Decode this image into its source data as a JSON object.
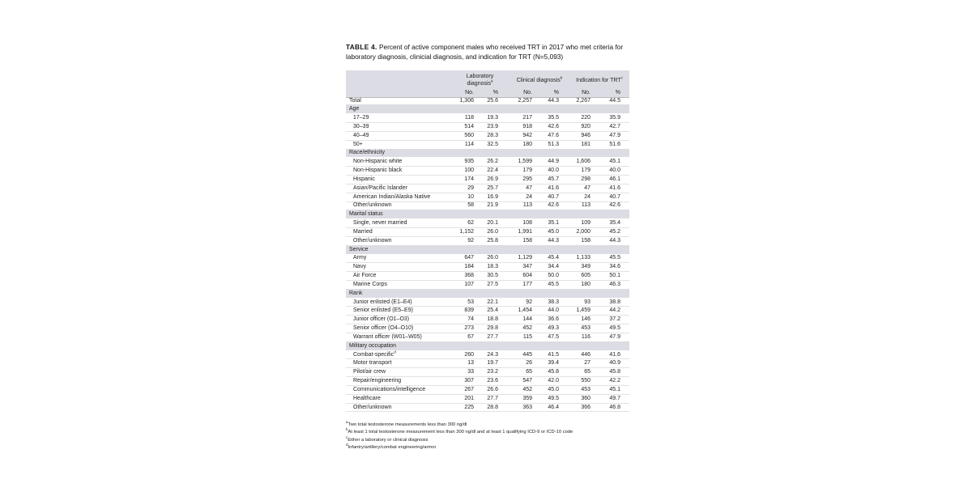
{
  "title_label": "TABLE 4.",
  "title": "Percent of active component males who received TRT in 2017 who met criteria for laboratory diagnosis, clinicial diagnosis, and indication for TRT (N=5,093)",
  "table": {
    "groups": [
      {
        "label": "Laboratory diagnosis",
        "note": "a"
      },
      {
        "label": "Clinical diagnosis",
        "note": "b"
      },
      {
        "label": "Indication for TRT",
        "note": "c"
      }
    ],
    "subheaders": [
      "No.",
      "%",
      "No.",
      "%",
      "No.",
      "%"
    ],
    "total": [
      "Total",
      "1,306",
      "25.6",
      "2,257",
      "44.3",
      "2,267",
      "44.5"
    ],
    "sections": [
      {
        "label": "Age",
        "rows": [
          [
            "17–29",
            "118",
            "19.3",
            "217",
            "35.5",
            "220",
            "35.9"
          ],
          [
            "30–39",
            "514",
            "23.9",
            "918",
            "42.6",
            "920",
            "42.7"
          ],
          [
            "40–49",
            "560",
            "28.3",
            "942",
            "47.6",
            "946",
            "47.9"
          ],
          [
            "50+",
            "114",
            "32.5",
            "180",
            "51.3",
            "181",
            "51.6"
          ]
        ]
      },
      {
        "label": "Race/ethnicity",
        "rows": [
          [
            "Non-Hispanic white",
            "935",
            "26.2",
            "1,599",
            "44.9",
            "1,606",
            "45.1"
          ],
          [
            "Non-Hispanic black",
            "100",
            "22.4",
            "179",
            "40.0",
            "179",
            "40.0"
          ],
          [
            "Hispanic",
            "174",
            "26.9",
            "295",
            "45.7",
            "298",
            "46.1"
          ],
          [
            "Asian/Pacific Islander",
            "29",
            "25.7",
            "47",
            "41.6",
            "47",
            "41.6"
          ],
          [
            "American Indian/Alaska Native",
            "10",
            "16.9",
            "24",
            "40.7",
            "24",
            "40.7"
          ],
          [
            "Other/unknown",
            "58",
            "21.9",
            "113",
            "42.6",
            "113",
            "42.6"
          ]
        ]
      },
      {
        "label": "Marital status",
        "rows": [
          [
            "Single, never married",
            "62",
            "20.1",
            "108",
            "35.1",
            "109",
            "35.4"
          ],
          [
            "Married",
            "1,152",
            "26.0",
            "1,991",
            "45.0",
            "2,000",
            "45.2"
          ],
          [
            "Other/unknown",
            "92",
            "25.8",
            "158",
            "44.3",
            "158",
            "44.3"
          ]
        ]
      },
      {
        "label": "Service",
        "rows": [
          [
            "Army",
            "647",
            "26.0",
            "1,129",
            "45.4",
            "1,133",
            "45.5"
          ],
          [
            "Navy",
            "184",
            "18.3",
            "347",
            "34.4",
            "349",
            "34.6"
          ],
          [
            "Air Force",
            "368",
            "30.5",
            "604",
            "50.0",
            "605",
            "50.1"
          ],
          [
            "Marine Corps",
            "107",
            "27.5",
            "177",
            "45.5",
            "180",
            "46.3"
          ]
        ]
      },
      {
        "label": "Rank",
        "rows": [
          [
            "Junior enlisted (E1–E4)",
            "53",
            "22.1",
            "92",
            "38.3",
            "93",
            "38.8"
          ],
          [
            "Senior enlisted (E5–E9)",
            "839",
            "25.4",
            "1,454",
            "44.0",
            "1,459",
            "44.2"
          ],
          [
            "Junior officer (O1–O3)",
            "74",
            "18.8",
            "144",
            "36.6",
            "146",
            "37.2"
          ],
          [
            "Senior officer (O4–O10)",
            "273",
            "29.8",
            "452",
            "49.3",
            "453",
            "49.5"
          ],
          [
            "Warrant officer (W01–W05)",
            "67",
            "27.7",
            "115",
            "47.5",
            "116",
            "47.9"
          ]
        ]
      },
      {
        "label": "Military occupation",
        "rows": [
          [
            {
              "label": "Combat-specific",
              "note": "d"
            },
            "260",
            "24.3",
            "445",
            "41.5",
            "446",
            "41.6"
          ],
          [
            "Motor transport",
            "13",
            "19.7",
            "26",
            "39.4",
            "27",
            "40.9"
          ],
          [
            "Pilot/air crew",
            "33",
            "23.2",
            "65",
            "45.8",
            "65",
            "45.8"
          ],
          [
            "Repair/engineering",
            "307",
            "23.6",
            "547",
            "42.0",
            "550",
            "42.2"
          ],
          [
            "Communications/intelligence",
            "267",
            "26.6",
            "452",
            "45.0",
            "453",
            "45.1"
          ],
          [
            "Healthcare",
            "201",
            "27.7",
            "359",
            "49.5",
            "360",
            "49.7"
          ],
          [
            "Other/unknown",
            "225",
            "28.8",
            "363",
            "46.4",
            "366",
            "46.8"
          ]
        ]
      }
    ]
  },
  "footnotes": [
    {
      "mark": "a",
      "text": "Two total testosterone measurements less than 300 ng/dl"
    },
    {
      "mark": "b",
      "text": "At least 1 total testosterone measurement less than 300 ng/dl and at least 1 qualifying ICD-9 or ICD-10 code"
    },
    {
      "mark": "c",
      "text": "Either a laboratory or clinical diagnosis"
    },
    {
      "mark": "d",
      "text": "Infantry/artillery/combat engineering/armor"
    }
  ]
}
